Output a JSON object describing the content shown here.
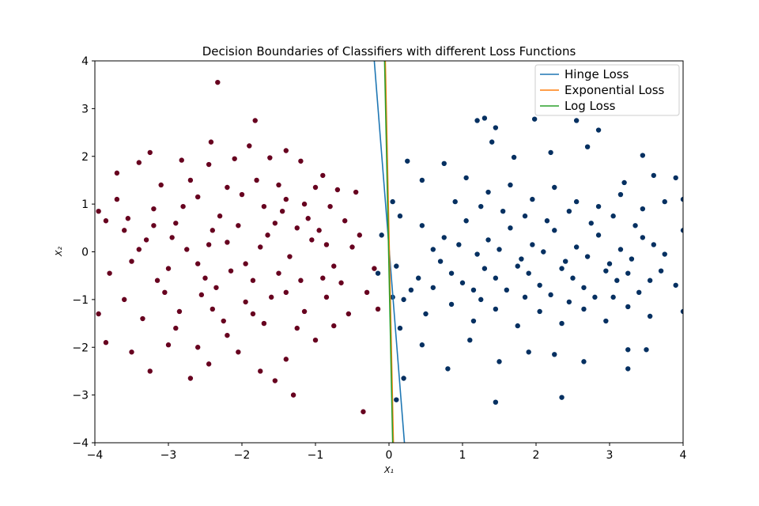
{
  "chart_data": {
    "type": "scatter",
    "title": "Decision Boundaries of Classifiers with different Loss Functions",
    "xlabel": "X₁",
    "ylabel": "X₂",
    "xlim": [
      -4,
      4
    ],
    "ylim": [
      -4,
      4
    ],
    "xticks": [
      -4,
      -3,
      -2,
      -1,
      0,
      1,
      2,
      3,
      4
    ],
    "yticks": [
      -4,
      -3,
      -2,
      -1,
      0,
      1,
      2,
      3,
      4
    ],
    "grid": false,
    "legend_position": "top-right",
    "point_colors": {
      "class_0": "#67001f",
      "class_1": "#053061"
    },
    "series": [
      {
        "name": "Hinge Loss",
        "color": "#1f77b4",
        "points": [
          [
            -0.2,
            4
          ],
          [
            0.21,
            -4
          ]
        ]
      },
      {
        "name": "Exponential Loss",
        "color": "#ff7f0e",
        "points": [
          [
            -0.05,
            4
          ],
          [
            0.06,
            -4
          ]
        ]
      },
      {
        "name": "Log Loss",
        "color": "#2ca02c",
        "points": [
          [
            -0.06,
            4
          ],
          [
            0.05,
            -4
          ]
        ]
      }
    ],
    "scatter": {
      "class_0": [
        [
          -2.33,
          3.55
        ],
        [
          -1.82,
          2.75
        ],
        [
          -2.42,
          2.3
        ],
        [
          -1.9,
          2.22
        ],
        [
          -3.25,
          2.08
        ],
        [
          -1.4,
          2.12
        ],
        [
          -1.62,
          1.97
        ],
        [
          -3.7,
          1.65
        ],
        [
          -3.4,
          1.87
        ],
        [
          -2.82,
          1.92
        ],
        [
          -2.1,
          1.95
        ],
        [
          -1.2,
          1.9
        ],
        [
          -0.9,
          1.6
        ],
        [
          -2.45,
          1.83
        ],
        [
          -3.95,
          0.85
        ],
        [
          -3.85,
          0.65
        ],
        [
          -3.6,
          0.45
        ],
        [
          -3.2,
          0.9
        ],
        [
          -2.9,
          0.6
        ],
        [
          -2.6,
          1.15
        ],
        [
          -2.3,
          0.75
        ],
        [
          -2.0,
          1.2
        ],
        [
          -1.7,
          0.95
        ],
        [
          -1.4,
          1.1
        ],
        [
          -1.1,
          0.7
        ],
        [
          -0.8,
          0.95
        ],
        [
          -0.6,
          0.65
        ],
        [
          -0.45,
          1.25
        ],
        [
          -3.8,
          -0.45
        ],
        [
          -3.5,
          -0.2
        ],
        [
          -3.3,
          0.25
        ],
        [
          -3.0,
          -0.35
        ],
        [
          -2.75,
          0.05
        ],
        [
          -2.5,
          -0.55
        ],
        [
          -2.2,
          0.2
        ],
        [
          -1.95,
          -0.25
        ],
        [
          -1.65,
          0.35
        ],
        [
          -1.35,
          -0.1
        ],
        [
          -1.05,
          0.25
        ],
        [
          -0.75,
          -0.3
        ],
        [
          -0.5,
          0.1
        ],
        [
          -0.2,
          -0.35
        ],
        [
          -3.6,
          -1.0
        ],
        [
          -3.35,
          -1.4
        ],
        [
          -3.05,
          -0.85
        ],
        [
          -2.85,
          -1.25
        ],
        [
          -2.55,
          -0.9
        ],
        [
          -2.25,
          -1.45
        ],
        [
          -1.95,
          -1.05
        ],
        [
          -1.7,
          -1.5
        ],
        [
          -1.4,
          -0.85
        ],
        [
          -1.15,
          -1.25
        ],
        [
          -0.85,
          -0.95
        ],
        [
          -0.55,
          -1.3
        ],
        [
          -0.15,
          -1.2
        ],
        [
          -3.95,
          -1.3
        ],
        [
          -3.85,
          -1.9
        ],
        [
          -3.5,
          -2.1
        ],
        [
          -3.25,
          -2.5
        ],
        [
          -2.7,
          -2.65
        ],
        [
          -2.45,
          -2.35
        ],
        [
          -2.05,
          -2.1
        ],
        [
          -1.75,
          -2.5
        ],
        [
          -1.55,
          -2.7
        ],
        [
          -1.3,
          -3.0
        ],
        [
          -0.35,
          -3.35
        ],
        [
          -3.0,
          -1.95
        ],
        [
          -2.2,
          -1.75
        ],
        [
          -1.0,
          -1.85
        ],
        [
          -3.1,
          1.4
        ],
        [
          -2.7,
          1.5
        ],
        [
          -2.2,
          1.35
        ],
        [
          -1.8,
          1.5
        ],
        [
          -1.5,
          1.4
        ],
        [
          -1.0,
          1.35
        ],
        [
          -0.7,
          1.3
        ],
        [
          -3.4,
          0.05
        ],
        [
          -2.95,
          0.3
        ],
        [
          -2.4,
          0.45
        ],
        [
          -2.05,
          0.55
        ],
        [
          -1.55,
          0.6
        ],
        [
          -1.25,
          0.5
        ],
        [
          -0.95,
          0.45
        ],
        [
          -3.15,
          -0.6
        ],
        [
          -2.6,
          -0.25
        ],
        [
          -2.35,
          -0.75
        ],
        [
          -1.85,
          -0.6
        ],
        [
          -1.5,
          -0.45
        ],
        [
          -1.2,
          -0.6
        ],
        [
          -0.65,
          -0.65
        ],
        [
          -2.9,
          -1.6
        ],
        [
          -2.4,
          -1.2
        ],
        [
          -1.85,
          -1.3
        ],
        [
          -1.25,
          -1.6
        ],
        [
          -0.75,
          -1.55
        ],
        [
          -2.6,
          -2.0
        ],
        [
          -1.4,
          -2.25
        ],
        [
          -3.7,
          1.1
        ],
        [
          -3.55,
          0.7
        ],
        [
          -3.2,
          0.55
        ],
        [
          -2.8,
          0.95
        ],
        [
          -2.45,
          0.15
        ],
        [
          -2.15,
          -0.4
        ],
        [
          -1.75,
          0.1
        ],
        [
          -1.45,
          0.85
        ],
        [
          -1.15,
          1.0
        ],
        [
          -0.85,
          0.15
        ],
        [
          -0.4,
          0.35
        ],
        [
          -0.3,
          -0.85
        ],
        [
          -0.9,
          -0.55
        ],
        [
          -1.6,
          -0.95
        ]
      ],
      "class_1": [
        [
          1.2,
          2.75
        ],
        [
          1.3,
          2.8
        ],
        [
          1.45,
          2.6
        ],
        [
          1.4,
          2.3
        ],
        [
          1.98,
          2.78
        ],
        [
          2.55,
          2.75
        ],
        [
          2.85,
          2.55
        ],
        [
          1.7,
          1.98
        ],
        [
          2.2,
          2.08
        ],
        [
          2.7,
          2.2
        ],
        [
          3.45,
          2.02
        ],
        [
          3.2,
          1.45
        ],
        [
          3.6,
          1.6
        ],
        [
          3.9,
          1.55
        ],
        [
          0.25,
          1.9
        ],
        [
          0.45,
          1.5
        ],
        [
          0.75,
          1.85
        ],
        [
          1.05,
          1.55
        ],
        [
          1.35,
          1.25
        ],
        [
          1.65,
          1.4
        ],
        [
          1.95,
          1.1
        ],
        [
          2.25,
          1.35
        ],
        [
          2.55,
          1.05
        ],
        [
          2.85,
          0.95
        ],
        [
          3.15,
          1.2
        ],
        [
          3.45,
          0.9
        ],
        [
          3.75,
          1.05
        ],
        [
          4.0,
          1.1
        ],
        [
          0.15,
          0.75
        ],
        [
          0.45,
          0.55
        ],
        [
          0.75,
          0.3
        ],
        [
          1.05,
          0.65
        ],
        [
          1.35,
          0.25
        ],
        [
          1.65,
          0.5
        ],
        [
          1.95,
          0.15
        ],
        [
          2.25,
          0.45
        ],
        [
          2.55,
          0.1
        ],
        [
          2.85,
          0.35
        ],
        [
          3.15,
          0.05
        ],
        [
          3.45,
          0.3
        ],
        [
          3.75,
          -0.05
        ],
        [
          4.0,
          0.45
        ],
        [
          0.1,
          -0.3
        ],
        [
          0.4,
          -0.55
        ],
        [
          0.7,
          -0.2
        ],
        [
          1.0,
          -0.65
        ],
        [
          1.3,
          -0.35
        ],
        [
          1.6,
          -0.8
        ],
        [
          1.9,
          -0.45
        ],
        [
          2.2,
          -0.9
        ],
        [
          2.5,
          -0.55
        ],
        [
          2.8,
          -0.95
        ],
        [
          3.1,
          -0.6
        ],
        [
          3.4,
          -0.85
        ],
        [
          3.7,
          -0.4
        ],
        [
          3.9,
          -0.7
        ],
        [
          0.2,
          -1.0
        ],
        [
          0.5,
          -1.3
        ],
        [
          0.85,
          -1.1
        ],
        [
          1.15,
          -1.45
        ],
        [
          1.45,
          -1.2
        ],
        [
          1.75,
          -1.55
        ],
        [
          2.05,
          -1.25
        ],
        [
          2.35,
          -1.5
        ],
        [
          2.65,
          -1.2
        ],
        [
          2.95,
          -1.45
        ],
        [
          3.25,
          -1.15
        ],
        [
          3.55,
          -1.35
        ],
        [
          4.0,
          -1.25
        ],
        [
          0.15,
          -1.6
        ],
        [
          0.45,
          -1.95
        ],
        [
          0.8,
          -2.45
        ],
        [
          1.1,
          -1.85
        ],
        [
          1.5,
          -2.3
        ],
        [
          1.9,
          -2.1
        ],
        [
          2.25,
          -2.15
        ],
        [
          2.65,
          -2.3
        ],
        [
          3.25,
          -2.05
        ],
        [
          3.25,
          -2.45
        ],
        [
          3.5,
          -2.05
        ],
        [
          1.45,
          -3.15
        ],
        [
          2.35,
          -3.05
        ],
        [
          0.1,
          -3.1
        ],
        [
          0.2,
          -2.65
        ],
        [
          -0.15,
          -0.45
        ],
        [
          0.05,
          -0.95
        ],
        [
          -0.1,
          0.35
        ],
        [
          0.05,
          1.05
        ],
        [
          0.3,
          -0.8
        ],
        [
          0.9,
          1.05
        ],
        [
          1.25,
          0.95
        ],
        [
          1.55,
          0.85
        ],
        [
          1.85,
          0.75
        ],
        [
          2.15,
          0.65
        ],
        [
          2.45,
          0.85
        ],
        [
          2.75,
          0.6
        ],
        [
          3.05,
          0.75
        ],
        [
          3.35,
          0.55
        ],
        [
          0.6,
          0.05
        ],
        [
          0.95,
          0.15
        ],
        [
          1.2,
          -0.05
        ],
        [
          1.5,
          0.05
        ],
        [
          1.8,
          -0.15
        ],
        [
          2.1,
          0.0
        ],
        [
          2.4,
          -0.2
        ],
        [
          2.7,
          -0.1
        ],
        [
          3.0,
          -0.25
        ],
        [
          3.3,
          -0.15
        ],
        [
          3.6,
          0.15
        ],
        [
          0.85,
          -0.45
        ],
        [
          1.15,
          -0.8
        ],
        [
          1.45,
          -0.55
        ],
        [
          1.75,
          -0.3
        ],
        [
          2.05,
          -0.7
        ],
        [
          2.35,
          -0.35
        ],
        [
          2.65,
          -0.75
        ],
        [
          2.95,
          -0.4
        ],
        [
          3.25,
          -0.45
        ],
        [
          3.55,
          -0.6
        ],
        [
          1.25,
          -1.0
        ],
        [
          1.85,
          -0.95
        ],
        [
          2.45,
          -1.05
        ],
        [
          3.05,
          -0.95
        ],
        [
          0.6,
          -0.75
        ]
      ]
    }
  }
}
